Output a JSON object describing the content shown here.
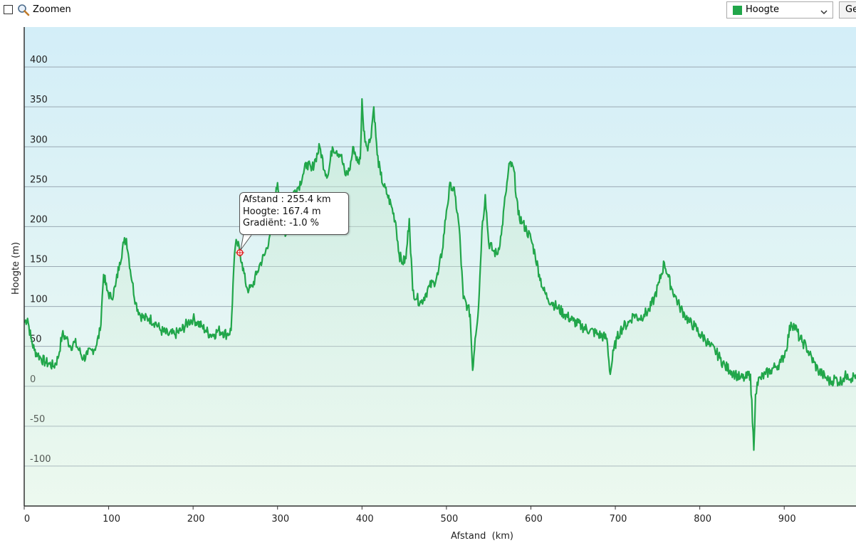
{
  "toolbar": {
    "zoom_label": "Zoomen",
    "zoom_checked": false,
    "series_selected": "Hoogte",
    "series_color": "#21a64a",
    "edge_button_label": "Ge"
  },
  "tooltip": {
    "distance": "Afstand : 255.4 km",
    "height": "Hoogte: 167.4 m",
    "gradient": "Gradiënt: -1.0 %"
  },
  "chart_data": {
    "type": "area",
    "title": "",
    "xlabel": "Afstand  (km)",
    "ylabel": "Hoogte (m)",
    "xlim": [
      0,
      985
    ],
    "ylim": [
      -150,
      450
    ],
    "x_ticks": [
      0,
      100,
      200,
      300,
      400,
      500,
      600,
      700,
      800,
      900
    ],
    "y_ticks": [
      400,
      350,
      300,
      250,
      200,
      150,
      100,
      50,
      0,
      -50,
      -100
    ],
    "grid": true,
    "colors": {
      "line": "#21a64a",
      "background_top": "#d3eef8",
      "background_bottom": "#effaf1"
    },
    "marker": {
      "x": 255.4,
      "y": 167.4
    },
    "series": [
      {
        "name": "Hoogte",
        "x": [
          0,
          4,
          8,
          12,
          16,
          20,
          25,
          30,
          35,
          40,
          45,
          50,
          55,
          60,
          65,
          70,
          75,
          80,
          85,
          90,
          94,
          98,
          103,
          108,
          113,
          118,
          121,
          124,
          128,
          132,
          137,
          142,
          148,
          155,
          162,
          170,
          178,
          186,
          194,
          200,
          205,
          210,
          215,
          220,
          225,
          230,
          235,
          240,
          245,
          248,
          250,
          252,
          255,
          258,
          262,
          266,
          270,
          275,
          280,
          285,
          290,
          295,
          300,
          305,
          310,
          316,
          320,
          325,
          330,
          335,
          340,
          345,
          350,
          356,
          360,
          365,
          370,
          375,
          380,
          385,
          390,
          395,
          398,
          400,
          402,
          406,
          410,
          414,
          418,
          422,
          426,
          430,
          435,
          440,
          444,
          448,
          452,
          456,
          460,
          465,
          470,
          475,
          480,
          485,
          490,
          495,
          500,
          505,
          510,
          515,
          520,
          525,
          528,
          531,
          534,
          538,
          542,
          546,
          550,
          555,
          560,
          565,
          570,
          575,
          580,
          585,
          590,
          595,
          600,
          605,
          610,
          615,
          620,
          625,
          630,
          640,
          650,
          660,
          670,
          680,
          690,
          694,
          698,
          702,
          706,
          710,
          716,
          722,
          728,
          734,
          740,
          746,
          752,
          758,
          762,
          766,
          770,
          776,
          782,
          788,
          794,
          800,
          806,
          812,
          818,
          824,
          830,
          836,
          842,
          848,
          854,
          860,
          864,
          866,
          868,
          872,
          878,
          884,
          890,
          896,
          902,
          908,
          912,
          915,
          918,
          922,
          926,
          930,
          935,
          940,
          945,
          950,
          955,
          960,
          965,
          970,
          975,
          980,
          985
        ],
        "y": [
          80,
          85,
          60,
          45,
          40,
          35,
          30,
          28,
          25,
          35,
          65,
          60,
          50,
          55,
          45,
          35,
          40,
          45,
          50,
          70,
          140,
          120,
          110,
          125,
          155,
          180,
          185,
          160,
          130,
          105,
          90,
          85,
          85,
          80,
          70,
          65,
          65,
          70,
          80,
          85,
          80,
          75,
          70,
          65,
          65,
          70,
          68,
          65,
          70,
          145,
          175,
          180,
          170,
          155,
          130,
          120,
          125,
          140,
          155,
          165,
          185,
          220,
          255,
          215,
          190,
          230,
          245,
          250,
          265,
          280,
          270,
          285,
          300,
          270,
          265,
          300,
          295,
          290,
          265,
          270,
          300,
          280,
          285,
          360,
          320,
          300,
          310,
          350,
          290,
          265,
          250,
          240,
          225,
          205,
          165,
          155,
          160,
          210,
          120,
          110,
          105,
          115,
          125,
          130,
          140,
          170,
          220,
          255,
          240,
          200,
          110,
          100,
          90,
          20,
          60,
          100,
          195,
          240,
          180,
          170,
          165,
          190,
          240,
          280,
          270,
          215,
          205,
          195,
          185,
          165,
          140,
          120,
          110,
          105,
          100,
          90,
          82,
          75,
          70,
          65,
          60,
          15,
          45,
          60,
          70,
          75,
          80,
          90,
          85,
          90,
          95,
          110,
          130,
          155,
          140,
          125,
          115,
          100,
          90,
          80,
          75,
          65,
          60,
          50,
          45,
          35,
          25,
          20,
          15,
          10,
          10,
          15,
          -80,
          -10,
          5,
          10,
          15,
          20,
          25,
          30,
          45,
          80,
          75,
          70,
          60,
          55,
          50,
          40,
          30,
          20,
          15,
          10,
          5,
          10,
          5,
          10,
          15,
          10,
          15
        ]
      }
    ]
  }
}
